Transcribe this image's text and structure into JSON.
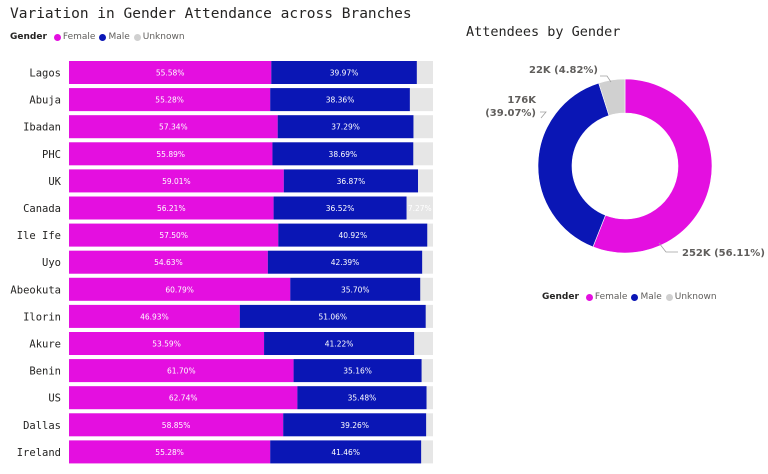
{
  "colors": {
    "female": "#e40fe0",
    "male": "#0a16b5",
    "unknown": "#d0d0d0",
    "track": "#e6e6e6"
  },
  "chart_data": [
    {
      "type": "bar",
      "orientation": "horizontal",
      "stacked": true,
      "title": "Variation in Gender Attendance across Branches",
      "legend": {
        "title": "Gender",
        "entries": [
          "Female",
          "Male",
          "Unknown"
        ],
        "placement": "top-left"
      },
      "categories": [
        "Lagos",
        "Abuja",
        "Ibadan",
        "PHC",
        "UK",
        "Canada",
        "Ile Ife",
        "Uyo",
        "Abeokuta",
        "Ilorin",
        "Akure",
        "Benin",
        "US",
        "Dallas",
        "Ireland"
      ],
      "series": [
        {
          "name": "Female",
          "values": [
            55.58,
            55.28,
            57.34,
            55.89,
            59.01,
            56.21,
            57.5,
            54.63,
            60.79,
            46.93,
            53.59,
            61.7,
            62.74,
            58.85,
            55.28
          ],
          "labels": [
            "55.58%",
            "55.28%",
            "57.34%",
            "55.89%",
            "59.01%",
            "56.21%",
            "57.50%",
            "54.63%",
            "60.79%",
            "46.93%",
            "53.59%",
            "61.70%",
            "62.74%",
            "58.85%",
            "55.28%"
          ]
        },
        {
          "name": "Male",
          "values": [
            39.97,
            38.36,
            37.29,
            38.69,
            36.87,
            36.52,
            40.92,
            42.39,
            35.7,
            51.06,
            41.22,
            35.16,
            35.48,
            39.26,
            41.46
          ],
          "labels": [
            "39.97%",
            "38.36%",
            "37.29%",
            "38.69%",
            "36.87%",
            "36.52%",
            "40.92%",
            "42.39%",
            "35.70%",
            "51.06%",
            "41.22%",
            "35.16%",
            "35.48%",
            "39.26%",
            "41.46%"
          ]
        },
        {
          "name": "Unknown",
          "values": [
            4.45,
            6.36,
            5.37,
            5.42,
            4.12,
            7.27,
            1.58,
            2.98,
            3.51,
            2.01,
            5.19,
            3.14,
            1.78,
            1.89,
            3.26
          ],
          "labels": [
            "",
            "",
            "",
            "",
            "",
            "7.27%",
            "",
            "",
            "",
            "",
            "",
            "",
            "",
            "",
            ""
          ]
        }
      ],
      "xlim": [
        0,
        100
      ]
    },
    {
      "type": "pie",
      "donut": true,
      "title": "Attendees by Gender",
      "legend": {
        "title": "Gender",
        "entries": [
          "Female",
          "Male",
          "Unknown"
        ],
        "placement": "bottom"
      },
      "slices": [
        {
          "name": "Female",
          "value": 252,
          "percent": 56.11,
          "label_value": "252K",
          "label_percent": "(56.11%)"
        },
        {
          "name": "Male",
          "value": 176,
          "percent": 39.07,
          "label_value": "176K",
          "label_percent": "(39.07%)"
        },
        {
          "name": "Unknown",
          "value": 22,
          "percent": 4.82,
          "label_value": "22K",
          "label_percent": "(4.82%)"
        }
      ]
    }
  ]
}
